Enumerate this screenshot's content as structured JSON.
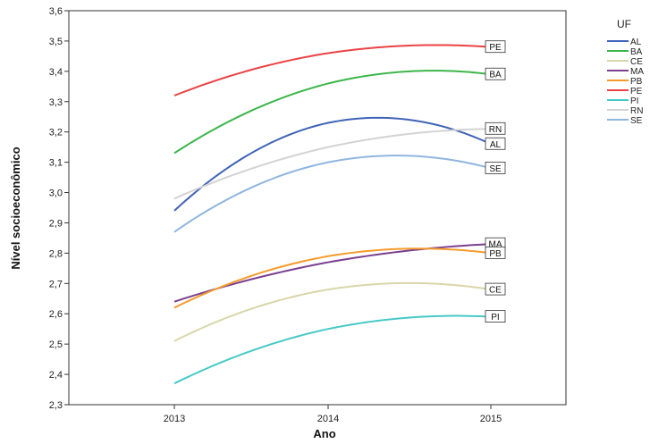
{
  "chart_data": {
    "type": "line",
    "xlabel": "Ano",
    "ylabel": "Nível socioeconômico",
    "x": [
      "2013",
      "2014",
      "2015"
    ],
    "ylim": [
      2.3,
      3.6
    ],
    "yticks": [
      "2,3",
      "2,4",
      "2,5",
      "2,6",
      "2,7",
      "2,8",
      "2,9",
      "3,0",
      "3,1",
      "3,2",
      "3,3",
      "3,4",
      "3,5",
      "3,6"
    ],
    "grid": false,
    "legend_title": "UF",
    "legend_position": "right",
    "series": [
      {
        "name": "AL",
        "color": "#3f63b6",
        "values": [
          2.94,
          3.23,
          3.16
        ]
      },
      {
        "name": "BA",
        "color": "#3cb54a",
        "values": [
          3.13,
          3.36,
          3.39
        ]
      },
      {
        "name": "CE",
        "color": "#d9d6a9",
        "values": [
          2.51,
          2.68,
          2.68
        ]
      },
      {
        "name": "MA",
        "color": "#7a3f8f",
        "values": [
          2.64,
          2.77,
          2.83
        ]
      },
      {
        "name": "PB",
        "color": "#f59b2b",
        "values": [
          2.62,
          2.79,
          2.8
        ]
      },
      {
        "name": "PE",
        "color": "#ea4245",
        "values": [
          3.32,
          3.46,
          3.48
        ]
      },
      {
        "name": "PI",
        "color": "#46c9c6",
        "values": [
          2.37,
          2.55,
          2.59
        ]
      },
      {
        "name": "RN",
        "color": "#d3d3d3",
        "values": [
          2.98,
          3.15,
          3.21
        ]
      },
      {
        "name": "SE",
        "color": "#8fb6e0",
        "values": [
          2.87,
          3.1,
          3.08
        ]
      }
    ]
  }
}
